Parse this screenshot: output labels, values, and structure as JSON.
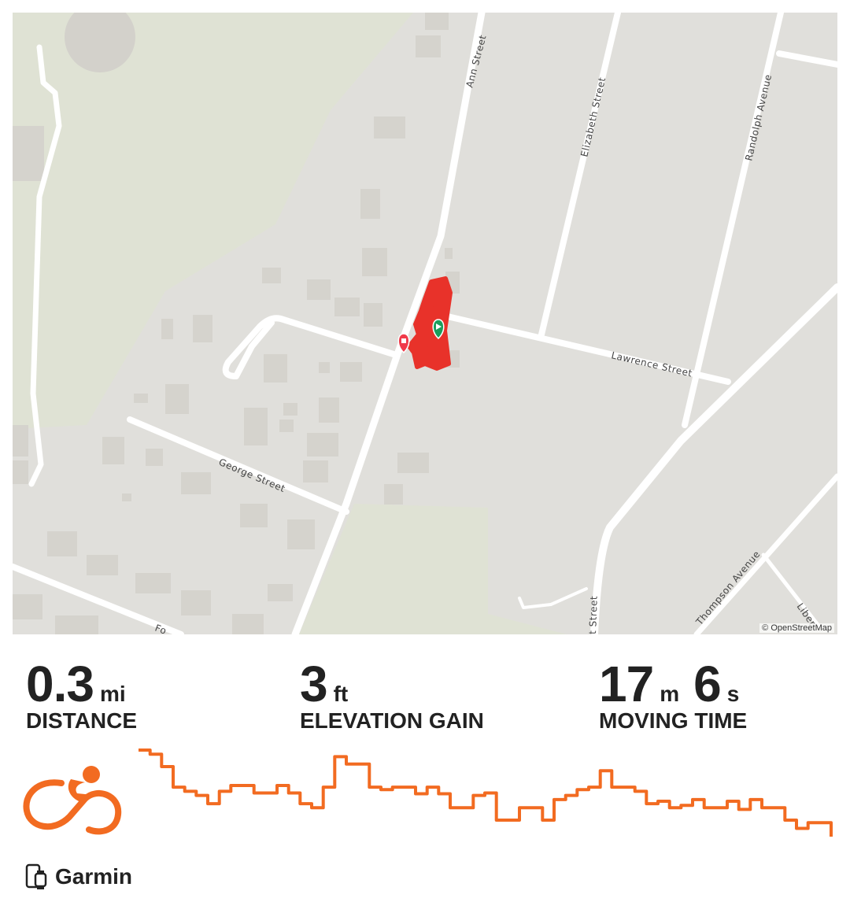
{
  "map": {
    "streets": [
      "Ann Street",
      "Elizabeth Street",
      "Randolph Avenue",
      "Lawrence Street",
      "George Street",
      "Thompson Avenue",
      "Liber",
      "t Street",
      "Fo"
    ],
    "attribution": "© OpenStreetMap",
    "track_color": "#e8322a",
    "start_marker_color": "#1a9e5c",
    "end_marker_color": "#f03a4a"
  },
  "stats": [
    {
      "value": "0.3",
      "unit": "mi",
      "label": "DISTANCE"
    },
    {
      "value": "3",
      "unit": "ft",
      "label": "ELEVATION GAIN"
    },
    {
      "value": "17",
      "unit": "m",
      "value2": "6",
      "unit2": "s",
      "label": "MOVING TIME"
    }
  ],
  "activity": {
    "type": "ride",
    "icon": "cycling-icon",
    "color": "#f26b21"
  },
  "elevation_profile": {
    "color": "#f26b21",
    "relative_values": [
      107,
      102,
      87,
      62,
      57,
      52,
      42,
      57,
      64,
      64,
      55,
      55,
      64,
      55,
      42,
      37,
      62,
      99,
      90,
      90,
      62,
      59,
      62,
      62,
      54,
      62,
      54,
      37,
      37,
      52,
      55,
      22,
      22,
      37,
      37,
      22,
      47,
      52,
      59,
      62,
      82,
      62,
      62,
      57,
      42,
      45,
      37,
      40,
      47,
      37,
      37,
      45,
      35,
      47,
      37,
      37,
      22,
      12,
      19,
      19,
      2
    ]
  },
  "device": {
    "name": "Garmin",
    "icon": "phone-watch-icon"
  }
}
